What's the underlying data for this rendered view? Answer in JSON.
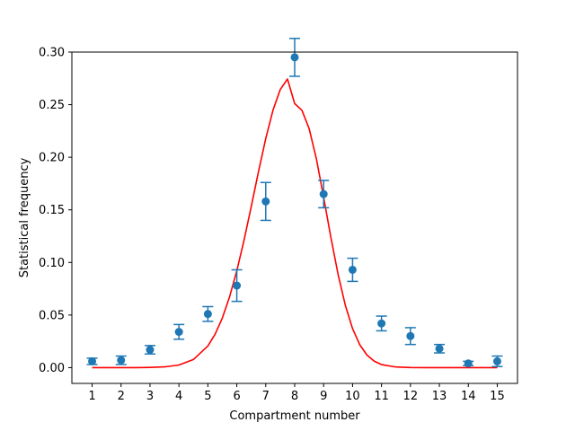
{
  "chart_data": {
    "type": "scatter",
    "title": "",
    "xlabel": "Compartment number",
    "ylabel": "Statistical frequency",
    "xlim": [
      0.3,
      15.7
    ],
    "ylim": [
      -0.015,
      0.3
    ],
    "xticks": [
      1,
      2,
      3,
      4,
      5,
      6,
      7,
      8,
      9,
      10,
      11,
      12,
      13,
      14,
      15
    ],
    "xtick_labels": [
      "1",
      "2",
      "3",
      "4",
      "5",
      "6",
      "7",
      "8",
      "9",
      "10",
      "11",
      "12",
      "13",
      "14",
      "15"
    ],
    "yticks": [
      0.0,
      0.05,
      0.1,
      0.15,
      0.2,
      0.25,
      0.3
    ],
    "ytick_labels": [
      "0.00",
      "0.05",
      "0.10",
      "0.15",
      "0.20",
      "0.25",
      "0.30"
    ],
    "grid": false,
    "series": [
      {
        "kind": "errorbar",
        "color": "#1f77b4",
        "x": [
          1,
          2,
          3,
          4,
          5,
          6,
          7,
          8,
          9,
          10,
          11,
          12,
          13,
          14,
          15
        ],
        "y": [
          0.006,
          0.007,
          0.017,
          0.034,
          0.051,
          0.078,
          0.158,
          0.295,
          0.165,
          0.093,
          0.042,
          0.03,
          0.018,
          0.004,
          0.006
        ],
        "yerr": [
          0.003,
          0.004,
          0.004,
          0.007,
          0.007,
          0.015,
          0.018,
          0.018,
          0.013,
          0.011,
          0.007,
          0.008,
          0.004,
          0.002,
          0.005
        ]
      },
      {
        "kind": "line",
        "color": "#ff0000",
        "x": [
          1,
          1.5,
          2,
          2.5,
          3,
          3.5,
          4,
          4.5,
          5,
          5.25,
          5.5,
          5.75,
          6,
          6.25,
          6.5,
          6.75,
          7,
          7.25,
          7.5,
          7.75,
          8,
          8.25,
          8.5,
          8.75,
          9,
          9.25,
          9.5,
          9.75,
          10,
          10.25,
          10.5,
          10.75,
          11,
          11.5,
          12,
          12.5,
          13,
          13.5,
          14,
          14.5,
          15
        ],
        "y": [
          0.0,
          0.0,
          0.0,
          0.0,
          0.0002,
          0.0007,
          0.0025,
          0.0077,
          0.0206,
          0.0318,
          0.0472,
          0.0673,
          0.0921,
          0.1212,
          0.1533,
          0.1864,
          0.2178,
          0.2447,
          0.2643,
          0.2744,
          0.251,
          0.2447,
          0.2272,
          0.1985,
          0.162,
          0.1239,
          0.0886,
          0.0593,
          0.0371,
          0.0217,
          0.0119,
          0.0061,
          0.0029,
          0.0006,
          0.0001,
          0.0,
          0.0,
          0.0,
          0.0,
          0.0,
          0.0
        ]
      }
    ]
  }
}
